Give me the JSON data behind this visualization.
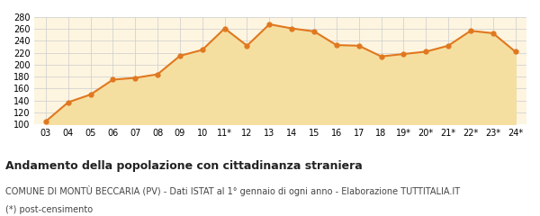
{
  "labels": [
    "03",
    "04",
    "05",
    "06",
    "07",
    "08",
    "09",
    "10",
    "11*",
    "12",
    "13",
    "14",
    "15",
    "16",
    "17",
    "18",
    "19*",
    "20*",
    "21*",
    "22*",
    "23*",
    "24*"
  ],
  "values": [
    105,
    137,
    150,
    175,
    178,
    184,
    215,
    225,
    261,
    232,
    268,
    261,
    256,
    233,
    232,
    214,
    218,
    222,
    232,
    257,
    253,
    222
  ],
  "ylim": [
    100,
    280
  ],
  "yticks": [
    100,
    120,
    140,
    160,
    180,
    200,
    220,
    240,
    260,
    280
  ],
  "line_color": "#e07820",
  "fill_color": "#fdf5e0",
  "marker_color": "#e07820",
  "bg_color": "#ffffff",
  "grid_color": "#cccccc",
  "title": "Andamento della popolazione con cittadinanza straniera",
  "subtitle": "COMUNE DI MONTÙ BECCARIA (PV) - Dati ISTAT al 1° gennaio di ogni anno - Elaborazione TUTTITALIA.IT",
  "footnote": "(*) post-censimento",
  "title_fontsize": 9,
  "subtitle_fontsize": 7,
  "footnote_fontsize": 7
}
